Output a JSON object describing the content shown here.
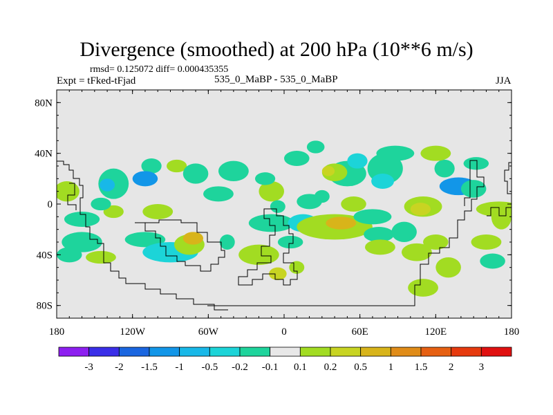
{
  "colors": {
    "background": "#e6e6e6",
    "levels": [
      "#8d1ff0",
      "#3a2ee8",
      "#1a66e0",
      "#1296e8",
      "#18b8e8",
      "#1cd4d8",
      "#1ed49c",
      "#e8e8e8",
      "#a2dc22",
      "#c8d422",
      "#d8b41a",
      "#e08c18",
      "#e66012",
      "#e63a0e",
      "#e01010"
    ]
  },
  "header": {
    "title": "Divergence (smoothed) at 200 hPa (10**6 m/s)",
    "stats": "rmsd= 0.125072 diff= 0.000435355",
    "experiment": "Expt = tFked-tFjad",
    "center_label": "535_0_MaBP - 535_0_MaBP",
    "season": "JJA"
  },
  "chart_data": {
    "type": "heatmap",
    "title": "Divergence (smoothed) at 200 hPa (10**6 m/s)",
    "xlabel": "",
    "ylabel": "",
    "xlim": [
      -180,
      180
    ],
    "ylim": [
      -90,
      90
    ],
    "x_ticks": [
      -180,
      -120,
      -60,
      0,
      60,
      120,
      180
    ],
    "x_tick_labels": [
      "180",
      "120W",
      "60W",
      "0",
      "60E",
      "120E",
      "180"
    ],
    "y_ticks": [
      -80,
      -40,
      0,
      40,
      80
    ],
    "y_tick_labels": [
      "80S",
      "40S",
      "0",
      "40N",
      "80N"
    ],
    "colorbar_labels": [
      "-3",
      "-2",
      "-1.5",
      "-1",
      "-0.5",
      "-0.2",
      "-0.1",
      "0.1",
      "0.2",
      "0.5",
      "1",
      "1.5",
      "2",
      "3"
    ],
    "blobs": [
      {
        "lon": 152,
        "lat": 32,
        "rlon": 10,
        "rlat": 5,
        "level": 6
      },
      {
        "lon": 127,
        "lat": 28,
        "rlon": 8,
        "rlat": 7,
        "level": 6
      },
      {
        "lon": 138,
        "lat": 14,
        "rlon": 15,
        "rlat": 7,
        "level": 3
      },
      {
        "lon": 150,
        "lat": 12,
        "rlon": 10,
        "rlat": 7,
        "level": 6
      },
      {
        "lon": 170,
        "lat": -4,
        "rlon": 18,
        "rlat": 6,
        "level": 8
      },
      {
        "lon": -172,
        "lat": 10,
        "rlon": 10,
        "rlat": 8,
        "level": 8
      },
      {
        "lon": -135,
        "lat": 16,
        "rlon": 12,
        "rlat": 12,
        "level": 6
      },
      {
        "lon": -140,
        "lat": 15,
        "rlon": 6,
        "rlat": 5,
        "level": 4
      },
      {
        "lon": -105,
        "lat": 30,
        "rlon": 8,
        "rlat": 6,
        "level": 6
      },
      {
        "lon": -110,
        "lat": 20,
        "rlon": 10,
        "rlat": 6,
        "level": 3
      },
      {
        "lon": -85,
        "lat": 30,
        "rlon": 8,
        "rlat": 5,
        "level": 8
      },
      {
        "lon": -70,
        "lat": 24,
        "rlon": 10,
        "rlat": 8,
        "level": 6
      },
      {
        "lon": -40,
        "lat": 26,
        "rlon": 12,
        "rlat": 8,
        "level": 6
      },
      {
        "lon": -52,
        "lat": 8,
        "rlon": 12,
        "rlat": 6,
        "level": 6
      },
      {
        "lon": 10,
        "lat": 36,
        "rlon": 10,
        "rlat": 6,
        "level": 6
      },
      {
        "lon": 25,
        "lat": 45,
        "rlon": 7,
        "rlat": 5,
        "level": 6
      },
      {
        "lon": 50,
        "lat": 24,
        "rlon": 15,
        "rlat": 10,
        "level": 6
      },
      {
        "lon": 40,
        "lat": 25,
        "rlon": 10,
        "rlat": 7,
        "level": 8
      },
      {
        "lon": 35,
        "lat": 26,
        "rlon": 5,
        "rlat": 4,
        "level": 9
      },
      {
        "lon": 80,
        "lat": 28,
        "rlon": 14,
        "rlat": 12,
        "level": 6
      },
      {
        "lon": 78,
        "lat": 18,
        "rlon": 9,
        "rlat": 6,
        "level": 5
      },
      {
        "lon": 88,
        "lat": 40,
        "rlon": 15,
        "rlat": 6,
        "level": 6
      },
      {
        "lon": 120,
        "lat": 40,
        "rlon": 12,
        "rlat": 6,
        "level": 8
      },
      {
        "lon": 58,
        "lat": 34,
        "rlon": 8,
        "rlat": 6,
        "level": 5
      },
      {
        "lon": -10,
        "lat": 10,
        "rlon": 10,
        "rlat": 8,
        "level": 8
      },
      {
        "lon": 20,
        "lat": 2,
        "rlon": 10,
        "rlat": 6,
        "level": 6
      },
      {
        "lon": 30,
        "lat": 6,
        "rlon": 6,
        "rlat": 5,
        "level": 6
      },
      {
        "lon": 55,
        "lat": 0,
        "rlon": 10,
        "rlat": 6,
        "level": 8
      },
      {
        "lon": 110,
        "lat": -2,
        "rlon": 15,
        "rlat": 8,
        "level": 8
      },
      {
        "lon": 108,
        "lat": -4,
        "rlon": 8,
        "rlat": 5,
        "level": 9
      },
      {
        "lon": -160,
        "lat": -12,
        "rlon": 14,
        "rlat": 6,
        "level": 6
      },
      {
        "lon": -100,
        "lat": -6,
        "rlon": 12,
        "rlat": 6,
        "level": 8
      },
      {
        "lon": -135,
        "lat": -6,
        "rlon": 8,
        "rlat": 5,
        "level": 8
      },
      {
        "lon": -160,
        "lat": -30,
        "rlon": 16,
        "rlat": 8,
        "level": 6
      },
      {
        "lon": -170,
        "lat": -40,
        "rlon": 10,
        "rlat": 6,
        "level": 6
      },
      {
        "lon": -145,
        "lat": -42,
        "rlon": 12,
        "rlat": 5,
        "level": 8
      },
      {
        "lon": -110,
        "lat": -28,
        "rlon": 16,
        "rlat": 6,
        "level": 6
      },
      {
        "lon": -90,
        "lat": -38,
        "rlon": 22,
        "rlat": 8,
        "level": 5
      },
      {
        "lon": -75,
        "lat": -32,
        "rlon": 12,
        "rlat": 8,
        "level": 8
      },
      {
        "lon": -72,
        "lat": -27,
        "rlon": 8,
        "rlat": 5,
        "level": 10
      },
      {
        "lon": -45,
        "lat": -30,
        "rlon": 6,
        "rlat": 6,
        "level": 6
      },
      {
        "lon": -20,
        "lat": -40,
        "rlon": 16,
        "rlat": 8,
        "level": 8
      },
      {
        "lon": -10,
        "lat": -15,
        "rlon": 18,
        "rlat": 7,
        "level": 6
      },
      {
        "lon": 15,
        "lat": -15,
        "rlon": 12,
        "rlat": 7,
        "level": 5
      },
      {
        "lon": 5,
        "lat": -30,
        "rlon": 10,
        "rlat": 5,
        "level": 6
      },
      {
        "lon": 10,
        "lat": -50,
        "rlon": 6,
        "rlat": 5,
        "level": 8
      },
      {
        "lon": -5,
        "lat": -55,
        "rlon": 7,
        "rlat": 5,
        "level": 9
      },
      {
        "lon": 40,
        "lat": -18,
        "rlon": 30,
        "rlat": 10,
        "level": 8
      },
      {
        "lon": 45,
        "lat": -15,
        "rlon": 12,
        "rlat": 5,
        "level": 10
      },
      {
        "lon": 70,
        "lat": -10,
        "rlon": 15,
        "rlat": 6,
        "level": 6
      },
      {
        "lon": 75,
        "lat": -24,
        "rlon": 12,
        "rlat": 6,
        "level": 6
      },
      {
        "lon": 95,
        "lat": -22,
        "rlon": 10,
        "rlat": 8,
        "level": 6
      },
      {
        "lon": 76,
        "lat": -34,
        "rlon": 12,
        "rlat": 6,
        "level": 8
      },
      {
        "lon": 105,
        "lat": -38,
        "rlon": 12,
        "rlat": 7,
        "level": 8
      },
      {
        "lon": 120,
        "lat": -30,
        "rlon": 10,
        "rlat": 6,
        "level": 8
      },
      {
        "lon": 130,
        "lat": -50,
        "rlon": 10,
        "rlat": 8,
        "level": 8
      },
      {
        "lon": 110,
        "lat": -66,
        "rlon": 12,
        "rlat": 7,
        "level": 8
      },
      {
        "lon": 160,
        "lat": -30,
        "rlon": 12,
        "rlat": 6,
        "level": 8
      },
      {
        "lon": 165,
        "lat": -45,
        "rlon": 10,
        "rlat": 6,
        "level": 6
      },
      {
        "lon": 172,
        "lat": -10,
        "rlon": 8,
        "rlat": 10,
        "level": 8
      },
      {
        "lon": -145,
        "lat": 0,
        "rlon": 8,
        "rlat": 5,
        "level": 6
      },
      {
        "lon": -15,
        "lat": 20,
        "rlon": 8,
        "rlat": 5,
        "level": 6
      },
      {
        "lon": -5,
        "lat": -2,
        "rlon": 6,
        "rlat": 5,
        "level": 6
      }
    ]
  }
}
